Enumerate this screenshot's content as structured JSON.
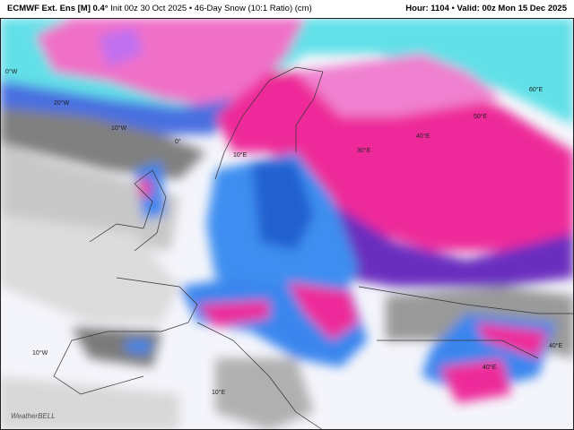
{
  "header": {
    "model": "ECMWF Ext. Ens [M] 0.4°",
    "description": "Init 00z 30 Oct 2025 • 46-Day Snow (10:1 Ratio) (cm)",
    "hour": "Hour: 1104",
    "valid": "Valid: 00z Mon 15 Dec 2025"
  },
  "grid_labels": [
    "0°W",
    "20°W",
    "10°W",
    "0°",
    "10°E",
    "30°E",
    "40°E",
    "50°E",
    "60°E",
    "10°W",
    "10°E",
    "40°E",
    "40°E"
  ],
  "watermark": "WeatherBELL"
}
